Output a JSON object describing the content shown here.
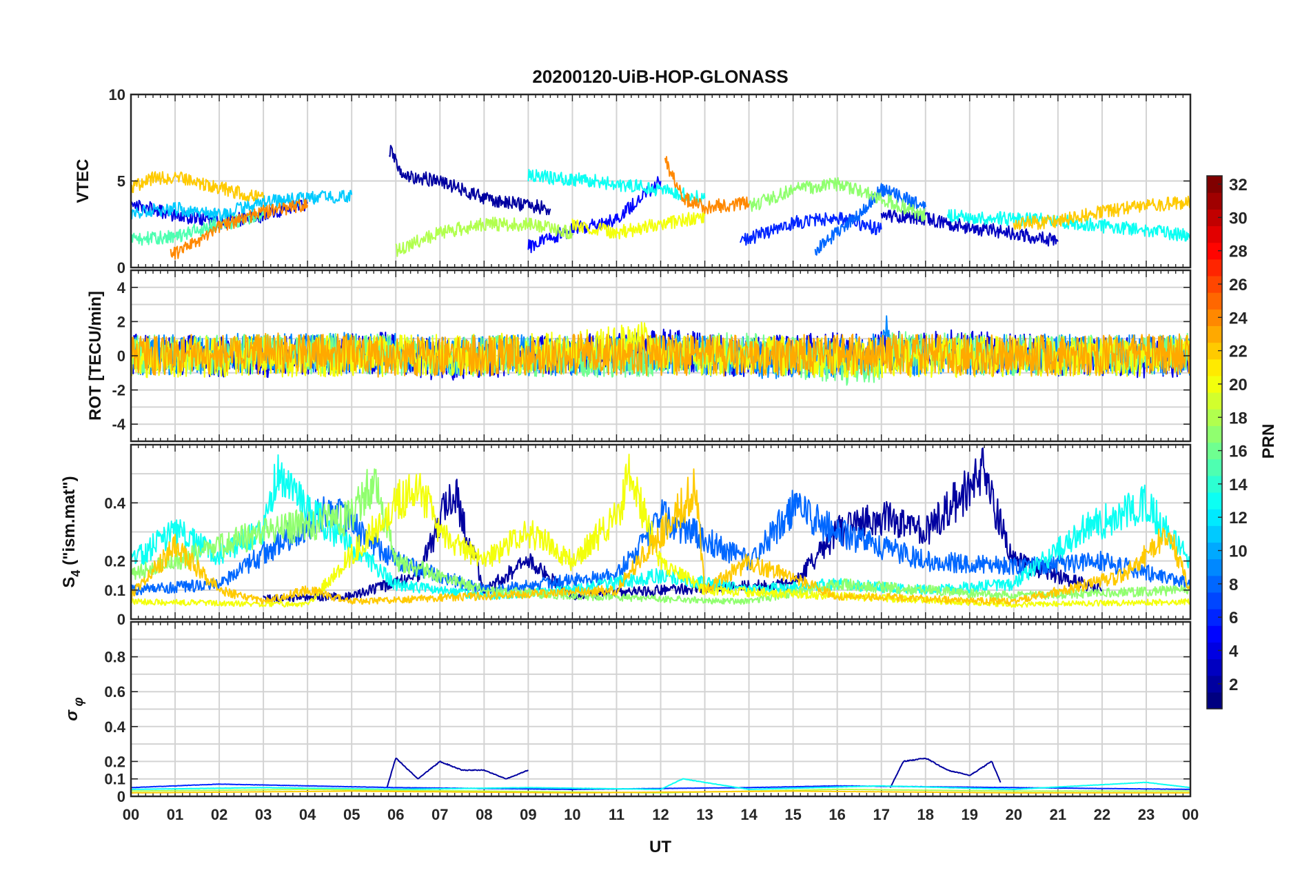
{
  "chart_data": {
    "title": "20200120-UiB-HOP-GLONASS",
    "type": "line",
    "xlabel": "UT",
    "x_ticks": [
      "00",
      "01",
      "02",
      "03",
      "04",
      "05",
      "06",
      "07",
      "08",
      "09",
      "10",
      "11",
      "12",
      "13",
      "14",
      "15",
      "16",
      "17",
      "18",
      "19",
      "20",
      "21",
      "22",
      "23",
      "00"
    ],
    "xlim": [
      0,
      24
    ],
    "grid": true,
    "panels": [
      {
        "name": "vtec",
        "ylabel": "VTEC",
        "ylim": [
          0,
          10
        ],
        "yticks": [
          "0",
          "5",
          "10"
        ],
        "ytick_values": [
          0,
          5,
          10
        ],
        "series": [
          {
            "prn": 2,
            "x": [
              5.85,
              6.2,
              7.0,
              8.0,
              9.5
            ],
            "y": [
              6.8,
              5.3,
              5.0,
              4.0,
              3.4
            ]
          },
          {
            "prn": 3,
            "x": [
              17.0,
              18.0,
              19.0,
              20.0,
              21.0
            ],
            "y": [
              3.0,
              2.8,
              2.3,
              2.0,
              1.5
            ]
          },
          {
            "prn": 4,
            "x": [
              0.0,
              1.0,
              2.0,
              3.0,
              4.0
            ],
            "y": [
              3.8,
              3.0,
              2.6,
              3.0,
              3.7
            ]
          },
          {
            "prn": 5,
            "x": [
              9.0,
              10.0,
              11.0,
              12.0
            ],
            "y": [
              1.2,
              2.2,
              2.8,
              5.0
            ]
          },
          {
            "prn": 6,
            "x": [
              13.8,
              15.0,
              16.0,
              17.0
            ],
            "y": [
              1.5,
              2.6,
              2.9,
              2.2
            ]
          },
          {
            "prn": 8,
            "x": [
              15.5,
              16.5,
              17.0,
              18.0
            ],
            "y": [
              1.0,
              3.0,
              4.5,
              3.5
            ]
          },
          {
            "prn": 11,
            "x": [
              0.0,
              1.0,
              2.0,
              3.0,
              4.0,
              5.0
            ],
            "y": [
              3.2,
              3.4,
              3.0,
              3.8,
              4.0,
              4.2
            ]
          },
          {
            "prn": 13,
            "x": [
              9.0,
              10.5,
              12.0,
              13.0
            ],
            "y": [
              5.3,
              5.0,
              4.5,
              4.0
            ]
          },
          {
            "prn": 13,
            "x": [
              18.5,
              20.0,
              21.0,
              22.0,
              23.0,
              24.0
            ],
            "y": [
              3.0,
              2.8,
              2.7,
              2.4,
              2.2,
              1.8
            ]
          },
          {
            "prn": 15,
            "x": [
              0.0,
              1.0,
              2.0,
              3.0
            ],
            "y": [
              1.6,
              1.8,
              2.5,
              3.0
            ]
          },
          {
            "prn": 17,
            "x": [
              14.0,
              15.0,
              16.0,
              17.0,
              18.0
            ],
            "y": [
              3.5,
              4.5,
              4.8,
              4.0,
              3.0
            ]
          },
          {
            "prn": 18,
            "x": [
              6.0,
              7.0,
              8.0,
              9.0,
              10.0
            ],
            "y": [
              1.0,
              2.0,
              2.5,
              2.5,
              2.0
            ]
          },
          {
            "prn": 20,
            "x": [
              10.0,
              11.0,
              12.0,
              13.0
            ],
            "y": [
              2.5,
              2.0,
              2.5,
              3.0
            ]
          },
          {
            "prn": 22,
            "x": [
              0.0,
              0.5,
              1.0,
              2.0,
              3.0
            ],
            "y": [
              4.5,
              5.2,
              5.2,
              4.6,
              4.0
            ]
          },
          {
            "prn": 22,
            "x": [
              20.0,
              21.0,
              22.0,
              23.0,
              24.0
            ],
            "y": [
              2.5,
              2.7,
              3.2,
              3.6,
              3.8
            ]
          },
          {
            "prn": 24,
            "x": [
              0.9,
              1.5,
              2.0,
              3.0,
              4.0
            ],
            "y": [
              0.7,
              1.5,
              2.4,
              3.2,
              3.6
            ]
          },
          {
            "prn": 24,
            "x": [
              12.1,
              12.5,
              13.0,
              14.0
            ],
            "y": [
              6.2,
              4.0,
              3.5,
              3.7
            ]
          }
        ]
      },
      {
        "name": "rot",
        "ylabel": "ROT [TECU/min]",
        "ylim": [
          -5,
          5
        ],
        "yticks": [
          "-4",
          "-2",
          "0",
          "2",
          "4"
        ],
        "ytick_values": [
          -4,
          -2,
          0,
          2,
          4
        ],
        "series": [
          {
            "prn": 4,
            "x": [
              0,
              3,
              6,
              7,
              8,
              10,
              12,
              14,
              16,
              17,
              18,
              20,
              22,
              24
            ],
            "y": [
              0.1,
              -0.1,
              0.2,
              -0.3,
              -0.2,
              0.1,
              0.4,
              -0.1,
              0.2,
              0.2,
              0.5,
              0.1,
              -0.1,
              -0.1
            ]
          },
          {
            "prn": 9,
            "x": [
              0,
              4,
              8,
              12,
              15,
              17,
              17.1,
              17.2,
              19,
              24
            ],
            "y": [
              0.0,
              0.2,
              0.0,
              0.1,
              -0.2,
              0.1,
              1.6,
              0.0,
              0.1,
              0.0
            ]
          },
          {
            "prn": 16,
            "x": [
              0,
              5,
              11,
              14,
              17,
              17.2,
              20,
              24
            ],
            "y": [
              0.0,
              0.1,
              -0.1,
              0.2,
              -0.8,
              0.3,
              0.0,
              0.1
            ]
          },
          {
            "prn": 20,
            "x": [
              0,
              6,
              10,
              11.9,
              12,
              16,
              24
            ],
            "y": [
              -0.1,
              0.0,
              0.2,
              0.9,
              0.1,
              -0.1,
              0.0
            ]
          },
          {
            "prn": 23,
            "x": [
              0,
              2,
              4,
              6,
              10,
              13,
              16,
              20,
              24
            ],
            "y": [
              0.1,
              0.0,
              0.2,
              -0.1,
              0.1,
              0.0,
              0.1,
              0.0,
              0.1
            ]
          }
        ]
      },
      {
        "name": "s4",
        "ylabel": "S4 (\"ism.mat\")",
        "ylim": [
          0,
          0.6
        ],
        "yticks": [
          "0",
          "0.1",
          "0.2",
          "0.4"
        ],
        "ytick_values": [
          0,
          0.1,
          0.2,
          0.4
        ],
        "series": [
          {
            "prn": 2,
            "x": [
              3,
              5,
              6.5,
              7.3,
              8,
              9,
              10,
              12,
              15,
              16,
              17,
              18,
              19.3,
              20,
              21,
              22
            ],
            "y": [
              0.07,
              0.08,
              0.15,
              0.45,
              0.1,
              0.2,
              0.08,
              0.1,
              0.12,
              0.3,
              0.35,
              0.3,
              0.5,
              0.2,
              0.15,
              0.1
            ]
          },
          {
            "prn": 8,
            "x": [
              0,
              2,
              4.5,
              6,
              8,
              11,
              12,
              14,
              15,
              16,
              18,
              20,
              22,
              24
            ],
            "y": [
              0.1,
              0.12,
              0.38,
              0.2,
              0.1,
              0.15,
              0.35,
              0.2,
              0.38,
              0.3,
              0.2,
              0.18,
              0.2,
              0.12
            ]
          },
          {
            "prn": 13,
            "x": [
              0,
              1,
              2,
              3,
              3.3,
              4,
              6,
              8,
              10,
              12,
              14,
              16,
              18,
              20,
              21.5,
              23,
              24
            ],
            "y": [
              0.2,
              0.3,
              0.22,
              0.3,
              0.5,
              0.38,
              0.12,
              0.08,
              0.1,
              0.15,
              0.1,
              0.12,
              0.1,
              0.12,
              0.3,
              0.4,
              0.2
            ]
          },
          {
            "prn": 17,
            "x": [
              0,
              3,
              5,
              5.5,
              6,
              8,
              10,
              14,
              16,
              18,
              20,
              24
            ],
            "y": [
              0.15,
              0.3,
              0.35,
              0.48,
              0.2,
              0.1,
              0.08,
              0.06,
              0.12,
              0.1,
              0.08,
              0.1
            ]
          },
          {
            "prn": 20,
            "x": [
              0,
              4,
              6.5,
              7,
              8,
              9,
              10,
              11,
              11.3,
              12,
              13,
              16,
              20,
              24
            ],
            "y": [
              0.06,
              0.05,
              0.48,
              0.3,
              0.2,
              0.3,
              0.2,
              0.35,
              0.5,
              0.2,
              0.1,
              0.08,
              0.05,
              0.06
            ]
          },
          {
            "prn": 22,
            "x": [
              0,
              1,
              2,
              3,
              4,
              5,
              8,
              11,
              12.8,
              13,
              14,
              16,
              20,
              22.5,
              23.5,
              24
            ],
            "y": [
              0.08,
              0.25,
              0.1,
              0.06,
              0.1,
              0.06,
              0.08,
              0.1,
              0.45,
              0.1,
              0.2,
              0.08,
              0.06,
              0.15,
              0.3,
              0.1
            ]
          }
        ]
      },
      {
        "name": "sigma_phi",
        "ylabel": "σ φ",
        "ylim": [
          0,
          1
        ],
        "yticks": [
          "0",
          "0.1",
          "0.2",
          "0.4",
          "0.6",
          "0.8"
        ],
        "ytick_values": [
          0,
          0.1,
          0.2,
          0.4,
          0.6,
          0.8
        ],
        "series": [
          {
            "prn": 2,
            "x": [
              5.8,
              6,
              6.5,
              7,
              7.5,
              8,
              8.5,
              9
            ],
            "y": [
              0.05,
              0.22,
              0.1,
              0.2,
              0.15,
              0.15,
              0.1,
              0.15
            ]
          },
          {
            "prn": 2,
            "x": [
              17.2,
              17.5,
              18,
              18.5,
              19,
              19.5,
              19.7
            ],
            "y": [
              0.05,
              0.2,
              0.22,
              0.15,
              0.12,
              0.2,
              0.08
            ]
          },
          {
            "prn": 6,
            "x": [
              0,
              2,
              4,
              6,
              10,
              14,
              16,
              20,
              24
            ],
            "y": [
              0.05,
              0.07,
              0.06,
              0.05,
              0.04,
              0.05,
              0.06,
              0.05,
              0.04
            ]
          },
          {
            "prn": 13,
            "x": [
              0,
              3,
              6,
              9,
              12,
              12.5,
              14,
              17,
              20,
              23,
              24
            ],
            "y": [
              0.04,
              0.05,
              0.04,
              0.05,
              0.04,
              0.1,
              0.04,
              0.06,
              0.04,
              0.08,
              0.05
            ]
          },
          {
            "prn": 18,
            "x": [
              0,
              4,
              8,
              12,
              16,
              20,
              24
            ],
            "y": [
              0.03,
              0.04,
              0.03,
              0.02,
              0.04,
              0.03,
              0.03
            ]
          },
          {
            "prn": 22,
            "x": [
              0,
              5,
              10,
              15,
              20,
              24
            ],
            "y": [
              0.02,
              0.03,
              0.02,
              0.03,
              0.02,
              0.02
            ]
          }
        ]
      }
    ],
    "colorbar": {
      "label": "PRN",
      "colormap": "jet",
      "range": [
        1,
        32
      ],
      "ticks": [
        "2",
        "4",
        "6",
        "8",
        "10",
        "12",
        "14",
        "16",
        "18",
        "20",
        "22",
        "24",
        "26",
        "28",
        "30",
        "32"
      ],
      "tick_values": [
        2,
        4,
        6,
        8,
        10,
        12,
        14,
        16,
        18,
        20,
        22,
        24,
        26,
        28,
        30,
        32
      ]
    }
  }
}
